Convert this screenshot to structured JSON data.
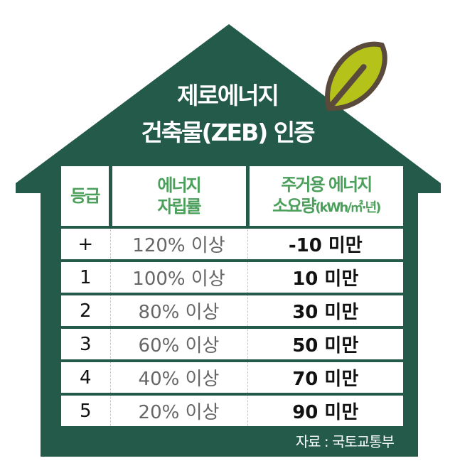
{
  "colors": {
    "house": "#245a49",
    "header_text": "#4aa05a",
    "leaf": "#b5c21a",
    "leaf_outline": "#5a4a3c"
  },
  "icons": {
    "leaf": "leaf-icon"
  },
  "title": {
    "line1": "제로에너지",
    "line2": "건축물(ZEB) 인증"
  },
  "table": {
    "headers": {
      "grade": "등급",
      "rate_line1": "에너지",
      "rate_line2": "자립률",
      "usage_line1": "주거용 에너지",
      "usage_line2": "소요량",
      "usage_unit": "(kWh/㎡·년)"
    },
    "rows": [
      {
        "grade": "+",
        "rate": "120% 이상",
        "usage": "-10 미만"
      },
      {
        "grade": "1",
        "rate": "100% 이상",
        "usage": "10 미만"
      },
      {
        "grade": "2",
        "rate": "80% 이상",
        "usage": "30 미만"
      },
      {
        "grade": "3",
        "rate": "60% 이상",
        "usage": "50 미만"
      },
      {
        "grade": "4",
        "rate": "40% 이상",
        "usage": "70 미만"
      },
      {
        "grade": "5",
        "rate": "20% 이상",
        "usage": "90 미만"
      }
    ]
  },
  "source": "자료 : 국토교통부"
}
